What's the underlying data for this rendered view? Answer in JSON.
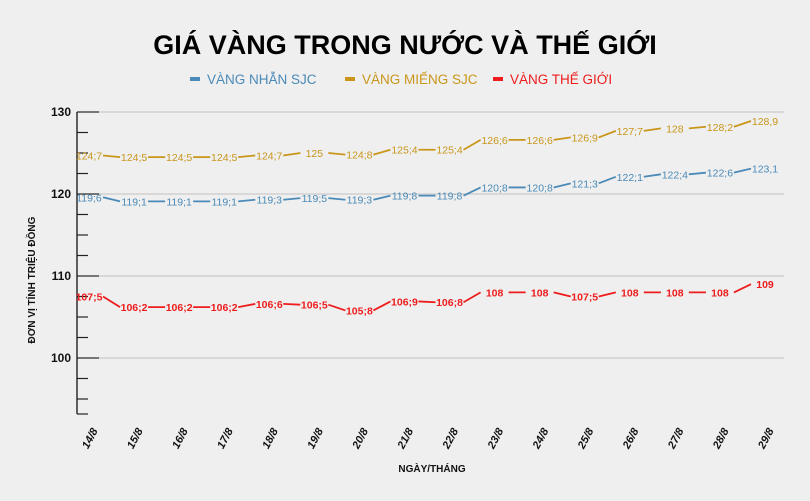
{
  "chart_data": {
    "type": "line",
    "title": "GIÁ VÀNG TRONG NƯỚC VÀ THẾ GIỚI",
    "xlabel": "NGÀY/THÁNG",
    "ylabel": "ĐƠN VỊ TÍNH TRIỆU ĐỒNG",
    "ylim": [
      93,
      130
    ],
    "yticks": [
      100,
      110,
      120,
      130
    ],
    "grid": true,
    "legend_position": "top",
    "categories": [
      "14/8",
      "15/8",
      "16/8",
      "17/8",
      "18/8",
      "19/8",
      "20/8",
      "21/8",
      "22/8",
      "23/8",
      "24/8",
      "25/8",
      "26/8",
      "27/8",
      "28/8",
      "29/8"
    ],
    "series": [
      {
        "name": "VÀNG NHẪN SJC",
        "color": "#4a8ab8",
        "values": [
          119.6,
          119.1,
          119.1,
          119.1,
          119.3,
          119.5,
          119.3,
          119.8,
          119.8,
          120.8,
          120.8,
          121.3,
          122.1,
          122.4,
          122.6,
          123.1
        ],
        "labels": [
          "119;6",
          "119;1",
          "119;1",
          "119;1",
          "119;3",
          "119;5",
          "119;3",
          "119;8",
          "119;8",
          "120;8",
          "120;8",
          "121;3",
          "122;1",
          "122;4",
          "122;6",
          "123,1"
        ]
      },
      {
        "name": "VÀNG MIẾNG SJC",
        "color": "#c9961a",
        "values": [
          124.7,
          124.5,
          124.5,
          124.5,
          124.7,
          125,
          124.8,
          125.4,
          125.4,
          126.6,
          126.6,
          126.9,
          127.7,
          128,
          128.2,
          128.9
        ],
        "labels": [
          "124;7",
          "124;5",
          "124;5",
          "124;5",
          "124;7",
          "125",
          "124;8",
          "125;4",
          "125;4",
          "126;6",
          "126;6",
          "126;9",
          "127;7",
          "128",
          "128;2",
          "128,9"
        ]
      },
      {
        "name": "VÀNG THẾ GIỚI",
        "color": "#ee1c1c",
        "values": [
          107.5,
          106.2,
          106.2,
          106.2,
          106.6,
          106.5,
          105.8,
          106.9,
          106.8,
          108,
          108,
          107.5,
          108,
          108,
          108,
          109
        ],
        "labels": [
          "107;5",
          "106;2",
          "106;2",
          "106;2",
          "106;6",
          "106;5",
          "105;8",
          "106;9",
          "106;8",
          "108",
          "108",
          "107;5",
          "108",
          "108",
          "108",
          "109"
        ]
      }
    ]
  }
}
